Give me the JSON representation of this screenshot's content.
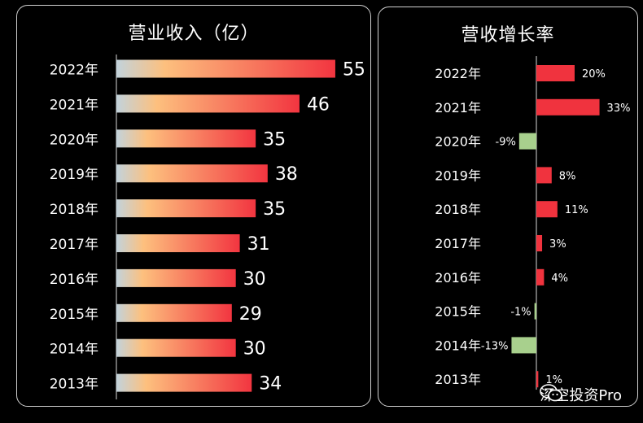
{
  "chart_data": [
    {
      "type": "bar",
      "orientation": "horizontal",
      "title": "营业收入（亿）",
      "categories": [
        "2022年",
        "2021年",
        "2020年",
        "2019年",
        "2018年",
        "2017年",
        "2016年",
        "2015年",
        "2014年",
        "2013年"
      ],
      "values": [
        55,
        46,
        35,
        38,
        35,
        31,
        30,
        29,
        30,
        34
      ],
      "data_labels": [
        "55",
        "46",
        "35",
        "38",
        "35",
        "31",
        "30",
        "29",
        "30",
        "34"
      ],
      "xlim": [
        0,
        60
      ],
      "grid": false,
      "colors": {
        "gradient_start": "#c2d3dc",
        "gradient_mid": "#fdc07e",
        "gradient_end": "#f23540"
      }
    },
    {
      "type": "bar",
      "orientation": "horizontal",
      "title": "营收增长率",
      "categories": [
        "2022年",
        "2021年",
        "2020年",
        "2019年",
        "2018年",
        "2017年",
        "2016年",
        "2015年",
        "2014年",
        "2013年"
      ],
      "values": [
        20,
        33,
        -9,
        8,
        11,
        3,
        4,
        -1,
        -13,
        1
      ],
      "data_labels": [
        "20%",
        "33%",
        "-9%",
        "8%",
        "11%",
        "3%",
        "4%",
        "-1%",
        "-13%",
        "1%"
      ],
      "xlim": [
        -15,
        35
      ],
      "grid": false,
      "colors": {
        "positive": "#f0333e",
        "negative": "#a8d08d"
      }
    }
  ],
  "watermark": {
    "text": "深空投资Pro",
    "icon": "wechat-icon"
  }
}
